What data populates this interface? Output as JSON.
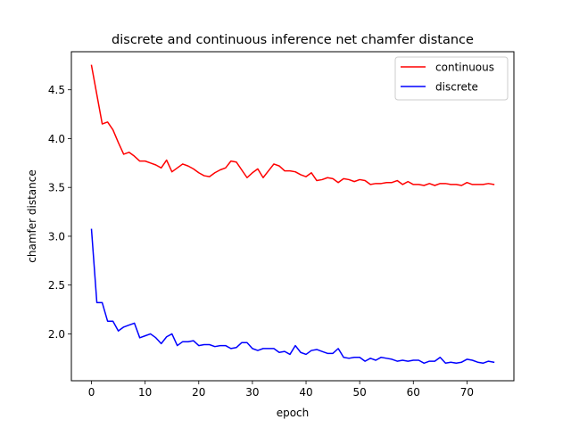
{
  "chart_data": {
    "type": "line",
    "title": "discrete and continuous inference net chamfer distance",
    "xlabel": "epoch",
    "ylabel": "chamfer distance",
    "xlim": [
      -3.75,
      78.75
    ],
    "ylim": [
      1.52,
      4.89
    ],
    "xticks": [
      0,
      10,
      20,
      30,
      40,
      50,
      60,
      70
    ],
    "yticks": [
      2.0,
      2.5,
      3.0,
      3.5,
      4.0,
      4.5
    ],
    "xtick_labels": [
      "0",
      "10",
      "20",
      "30",
      "40",
      "50",
      "60",
      "70"
    ],
    "ytick_labels": [
      "2.0",
      "2.5",
      "3.0",
      "3.5",
      "4.0",
      "4.5"
    ],
    "grid": false,
    "legend_position": "top-right",
    "series": [
      {
        "name": "continuous",
        "color": "#ff0000",
        "values": [
          4.75,
          4.45,
          4.15,
          4.17,
          4.09,
          3.96,
          3.84,
          3.86,
          3.82,
          3.77,
          3.77,
          3.75,
          3.73,
          3.7,
          3.78,
          3.66,
          3.7,
          3.74,
          3.72,
          3.69,
          3.65,
          3.62,
          3.61,
          3.65,
          3.68,
          3.7,
          3.77,
          3.76,
          3.68,
          3.6,
          3.65,
          3.69,
          3.6,
          3.67,
          3.74,
          3.72,
          3.67,
          3.67,
          3.66,
          3.63,
          3.61,
          3.65,
          3.57,
          3.58,
          3.6,
          3.59,
          3.55,
          3.59,
          3.58,
          3.56,
          3.58,
          3.57,
          3.53,
          3.54,
          3.54,
          3.55,
          3.55,
          3.57,
          3.53,
          3.56,
          3.53,
          3.53,
          3.52,
          3.54,
          3.52,
          3.54,
          3.54,
          3.53,
          3.53,
          3.52,
          3.55,
          3.53,
          3.53,
          3.53,
          3.54,
          3.53
        ]
      },
      {
        "name": "discrete",
        "color": "#0000ff",
        "values": [
          3.07,
          2.32,
          2.32,
          2.13,
          2.13,
          2.03,
          2.07,
          2.09,
          2.11,
          1.96,
          1.98,
          2.0,
          1.96,
          1.9,
          1.97,
          2.0,
          1.88,
          1.92,
          1.92,
          1.93,
          1.88,
          1.89,
          1.89,
          1.87,
          1.88,
          1.88,
          1.85,
          1.86,
          1.91,
          1.91,
          1.85,
          1.83,
          1.85,
          1.85,
          1.85,
          1.81,
          1.82,
          1.79,
          1.88,
          1.81,
          1.79,
          1.83,
          1.84,
          1.82,
          1.8,
          1.8,
          1.85,
          1.76,
          1.75,
          1.76,
          1.76,
          1.72,
          1.75,
          1.73,
          1.76,
          1.75,
          1.74,
          1.72,
          1.73,
          1.72,
          1.73,
          1.73,
          1.7,
          1.72,
          1.72,
          1.76,
          1.7,
          1.71,
          1.7,
          1.71,
          1.74,
          1.73,
          1.71,
          1.7,
          1.72,
          1.71
        ]
      }
    ]
  }
}
